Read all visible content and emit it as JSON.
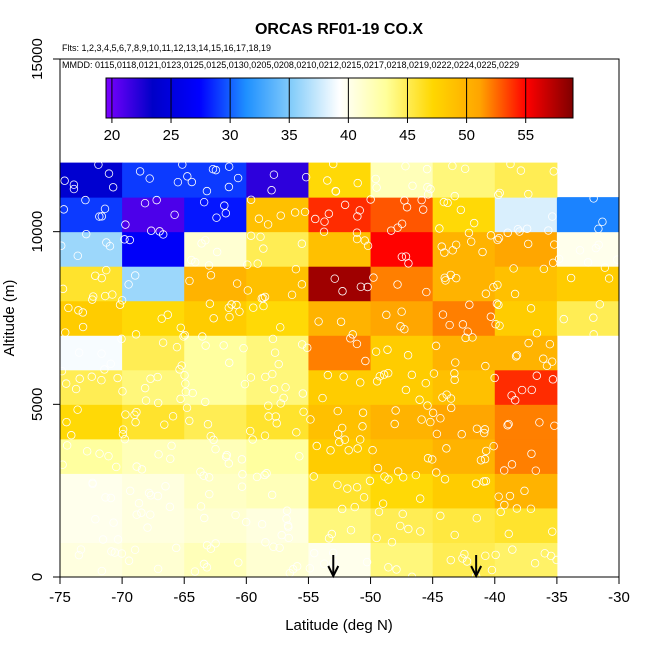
{
  "chart_data": {
    "type": "heatmap",
    "title": "ORCAS RF01-19 CO.X",
    "flights_label": "Flts: 1,2,3,4,5,6,7,8,9,10,11,12,13,14,15,16,17,18,19",
    "dates_label": "MMDD: 0115,0118,0121,0123,0125,0125,0130,0205,0208,0210,0212,0215,0217,0218,0219,0222,0224,0225,0229",
    "xlabel": "Latitude (deg N)",
    "ylabel": "Altitude (m)",
    "xlim": [
      -75,
      -30
    ],
    "ylim": [
      0,
      15000
    ],
    "xticks": [
      -75,
      -70,
      -65,
      -60,
      -55,
      -50,
      -45,
      -40,
      -35,
      -30
    ],
    "yticks": [
      0,
      5000,
      10000,
      15000
    ],
    "colorbar": {
      "range": [
        19.5,
        59
      ],
      "ticks": [
        20,
        25,
        30,
        35,
        40,
        45,
        50,
        55
      ],
      "colors": [
        "#7B00FF",
        "#0000C8",
        "#0000FF",
        "#1E90FF",
        "#87CEFA",
        "#FFFFFF",
        "#FFFF9A",
        "#FFD700",
        "#FFA500",
        "#FF0000",
        "#7F0000"
      ]
    },
    "x_edges": [
      -75,
      -70,
      -65,
      -60,
      -55,
      -50,
      -45,
      -40,
      -35,
      -30
    ],
    "y_edges": [
      0,
      1000,
      2000,
      3000,
      4000,
      5000,
      6000,
      7000,
      8000,
      9000,
      10000,
      11000,
      12000
    ],
    "cells": [
      [
        40.5,
        41,
        42,
        41,
        40,
        44,
        45,
        44.5,
        null
      ],
      [
        40,
        40.5,
        41,
        40.5,
        44,
        45,
        45.5,
        46,
        null
      ],
      [
        40,
        40.5,
        41.5,
        42,
        46,
        47,
        48,
        50,
        null
      ],
      [
        43,
        42,
        42,
        43,
        48,
        49,
        50,
        52,
        null
      ],
      [
        47,
        46,
        45,
        46,
        49,
        50,
        51,
        52,
        null
      ],
      [
        45,
        44,
        43,
        44,
        48,
        48,
        49,
        54,
        null
      ],
      [
        39,
        45,
        43,
        44,
        52,
        48,
        50,
        50,
        null
      ],
      [
        48,
        47,
        48,
        47,
        50,
        51,
        52,
        48,
        45
      ],
      [
        46,
        36,
        50,
        49,
        58,
        52,
        50,
        49,
        48
      ],
      [
        36,
        27,
        41,
        45,
        49,
        55,
        50,
        51,
        40
      ],
      [
        29,
        21,
        28,
        49,
        54,
        53,
        47,
        38,
        31
      ],
      [
        24,
        29,
        29,
        22,
        47,
        42,
        44,
        45,
        null
      ]
    ],
    "arrows_lat": [
      -53,
      -41.5
    ]
  }
}
